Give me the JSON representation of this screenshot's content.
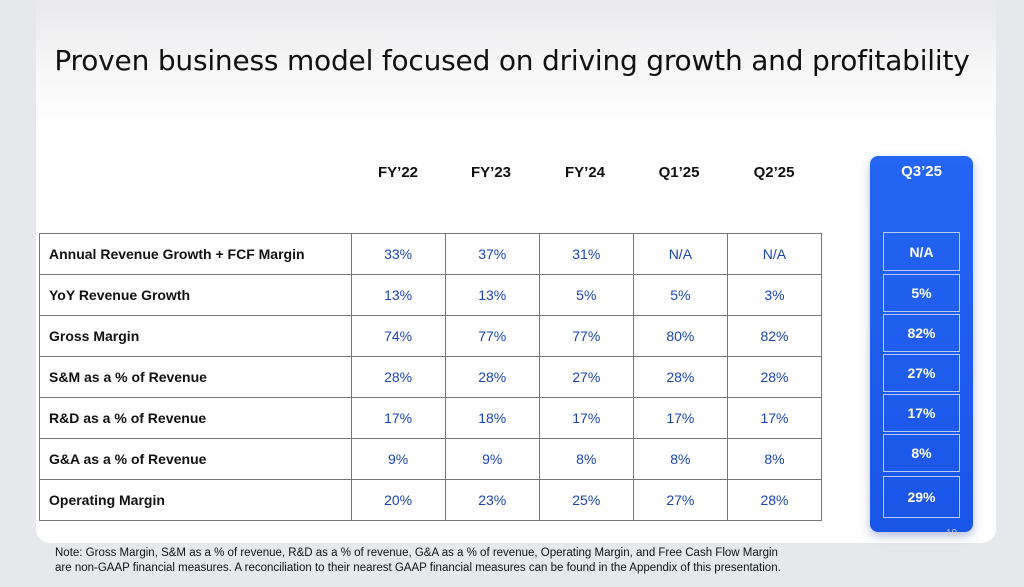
{
  "title": "Proven business model focused on driving growth and profitability",
  "columns": [
    "FY’22",
    "FY’23",
    "FY’24",
    "Q1’25",
    "Q2’25"
  ],
  "highlight_column": "Q3’25",
  "rows": [
    {
      "label": "Annual Revenue Growth + FCF Margin",
      "values": [
        "33%",
        "37%",
        "31%",
        "N/A",
        "N/A"
      ],
      "highlight": "N/A"
    },
    {
      "label": "YoY Revenue Growth",
      "values": [
        "13%",
        "13%",
        "5%",
        "5%",
        "3%"
      ],
      "highlight": "5%"
    },
    {
      "label": "Gross Margin",
      "values": [
        "74%",
        "77%",
        "77%",
        "80%",
        "82%"
      ],
      "highlight": "82%"
    },
    {
      "label": "S&M as a % of Revenue",
      "values": [
        "28%",
        "28%",
        "27%",
        "28%",
        "28%"
      ],
      "highlight": "27%"
    },
    {
      "label": "R&D as a % of Revenue",
      "values": [
        "17%",
        "18%",
        "17%",
        "17%",
        "17%"
      ],
      "highlight": "17%"
    },
    {
      "label": "G&A as a % of Revenue",
      "values": [
        "9%",
        "9%",
        "8%",
        "8%",
        "8%"
      ],
      "highlight": "8%"
    },
    {
      "label": "Operating Margin",
      "values": [
        "20%",
        "23%",
        "25%",
        "27%",
        "28%"
      ],
      "highlight": "29%"
    }
  ],
  "note_line1": "Note: Gross Margin, S&M as a % of revenue, R&D as a % of revenue, G&A as a % of revenue, Operating Margin, and Free Cash Flow Margin",
  "note_line2": "are non-GAAP financial measures. A reconciliation to their nearest GAAP financial measures can be found in the Appendix of this presentation.",
  "page_number": "10",
  "colors": {
    "value_text": "#1b45b4",
    "highlight_bg": "#2160f0"
  }
}
